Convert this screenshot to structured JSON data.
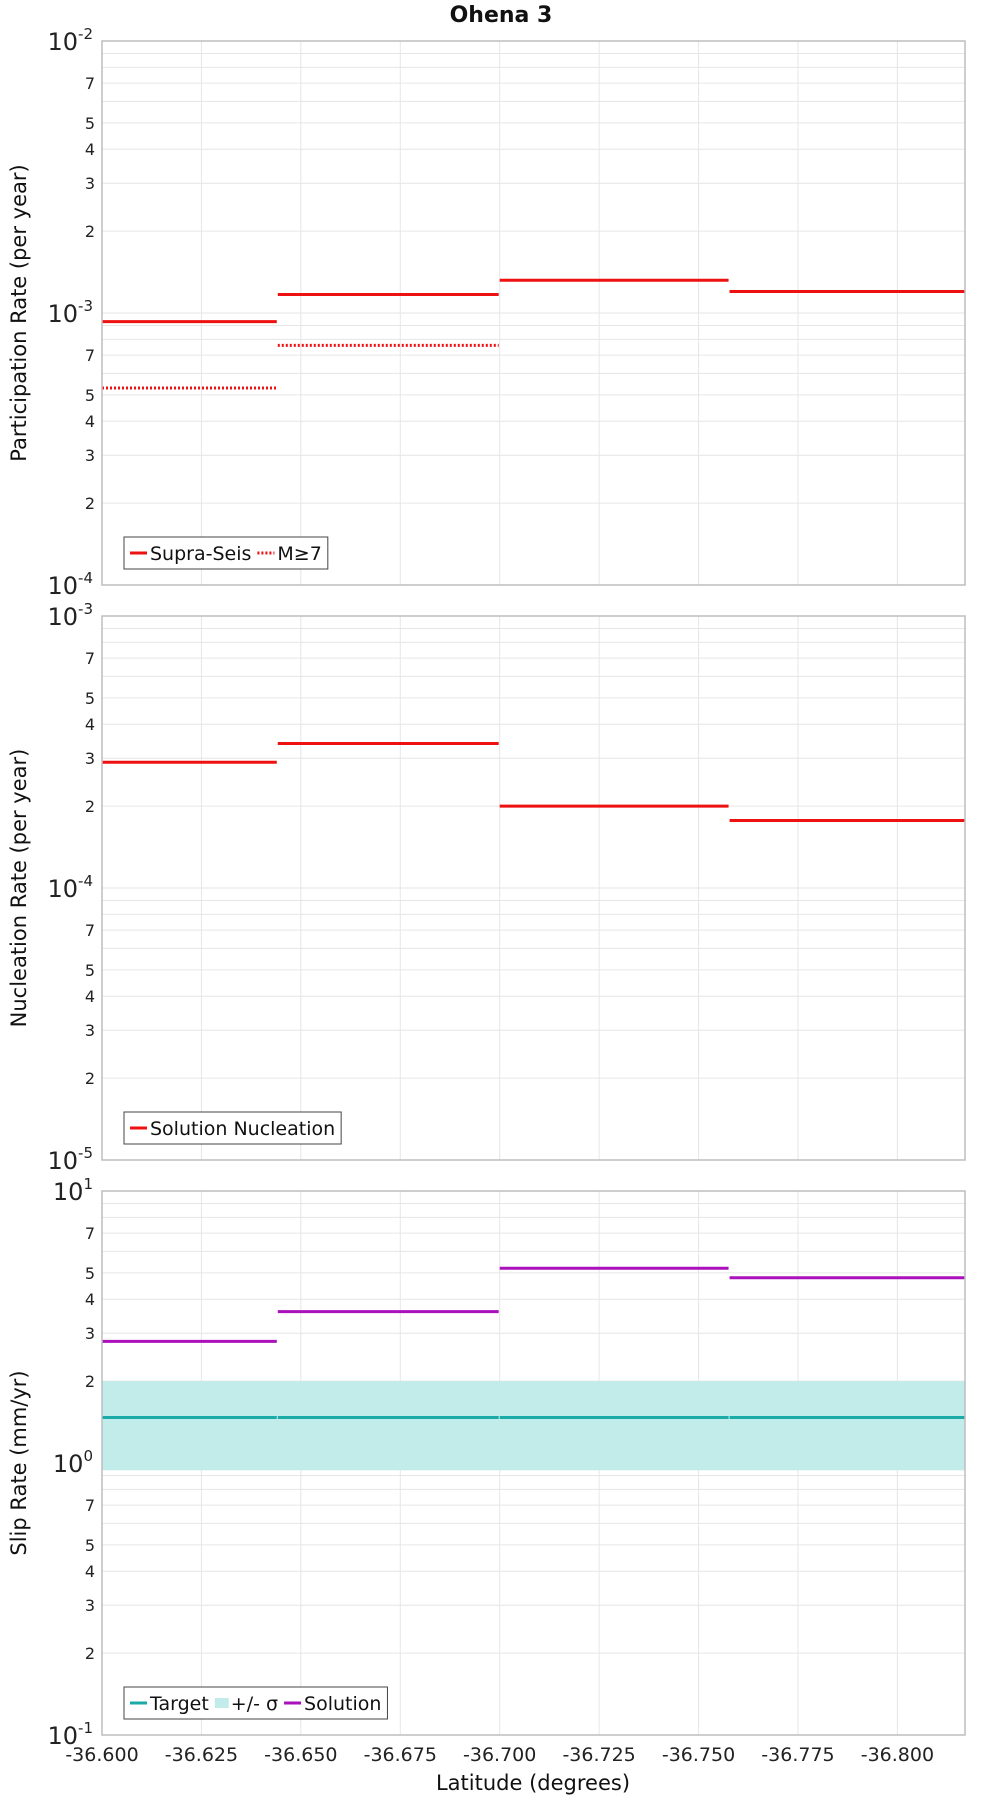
{
  "chart_data": {
    "type": "line",
    "title": "Ohena 3",
    "xlabel": "Latitude (degrees)",
    "xlim": [
      -36.6,
      -36.817
    ],
    "x_tick_values": [
      -36.6,
      -36.625,
      -36.65,
      -36.675,
      -36.7,
      -36.725,
      -36.75,
      -36.775,
      -36.8
    ],
    "x_tick_labels": [
      "-36.600",
      "-36.625",
      "-36.650",
      "-36.675",
      "-36.700",
      "-36.725",
      "-36.750",
      "-36.775",
      "-36.800"
    ],
    "segment_edges": [
      -36.6,
      -36.6442,
      -36.7,
      -36.7578,
      -36.817
    ],
    "panels": [
      {
        "ylabel": "Participation Rate (per year)",
        "ylim": [
          0.0001,
          0.01
        ],
        "decade_labels": [
          {
            "value": 0.01,
            "base": "10",
            "exp": "-2"
          },
          {
            "value": 0.001,
            "base": "10",
            "exp": "-3"
          },
          {
            "value": 0.0001,
            "base": "10",
            "exp": "-4"
          }
        ],
        "minor_labels": [
          {
            "value": 0.007,
            "label": "7"
          },
          {
            "value": 0.005,
            "label": "5"
          },
          {
            "value": 0.004,
            "label": "4"
          },
          {
            "value": 0.003,
            "label": "3"
          },
          {
            "value": 0.002,
            "label": "2"
          },
          {
            "value": 0.0007,
            "label": "7"
          },
          {
            "value": 0.0005,
            "label": "5"
          },
          {
            "value": 0.0004,
            "label": "4"
          },
          {
            "value": 0.0003,
            "label": "3"
          },
          {
            "value": 0.0002,
            "label": "2"
          }
        ],
        "series": [
          {
            "name": "Supra-Seis",
            "color": "#ee1111",
            "style": "solid",
            "values": [
              0.00093,
              0.00117,
              0.00132,
              0.0012
            ]
          },
          {
            "name": "M≥7",
            "color": "#ee1111",
            "style": "dotted",
            "values": [
              0.00053,
              0.00076,
              null,
              0.0012
            ]
          }
        ],
        "legend": [
          {
            "label": "Supra-Seis",
            "kind": "line",
            "color": "#ee1111",
            "style": "solid"
          },
          {
            "label": "M≥7",
            "kind": "line",
            "color": "#ee1111",
            "style": "dotted"
          }
        ]
      },
      {
        "ylabel": "Nucleation Rate (per year)",
        "ylim": [
          1e-05,
          0.001
        ],
        "decade_labels": [
          {
            "value": 0.001,
            "base": "10",
            "exp": "-3"
          },
          {
            "value": 0.0001,
            "base": "10",
            "exp": "-4"
          },
          {
            "value": 1e-05,
            "base": "10",
            "exp": "-5"
          }
        ],
        "minor_labels": [
          {
            "value": 0.0007,
            "label": "7"
          },
          {
            "value": 0.0005,
            "label": "5"
          },
          {
            "value": 0.0004,
            "label": "4"
          },
          {
            "value": 0.0003,
            "label": "3"
          },
          {
            "value": 0.0002,
            "label": "2"
          },
          {
            "value": 7e-05,
            "label": "7"
          },
          {
            "value": 5e-05,
            "label": "5"
          },
          {
            "value": 4e-05,
            "label": "4"
          },
          {
            "value": 3e-05,
            "label": "3"
          },
          {
            "value": 2e-05,
            "label": "2"
          }
        ],
        "series": [
          {
            "name": "Solution Nucleation",
            "color": "#ee1111",
            "style": "solid",
            "values": [
              0.00029,
              0.00034,
              0.0002,
              0.000177
            ]
          }
        ],
        "legend": [
          {
            "label": "Solution Nucleation",
            "kind": "line",
            "color": "#ee1111",
            "style": "solid"
          }
        ]
      },
      {
        "ylabel": "Slip Rate (mm/yr)",
        "ylim": [
          0.1,
          10
        ],
        "decade_labels": [
          {
            "value": 10,
            "base": "10",
            "exp": "1"
          },
          {
            "value": 1,
            "base": "10",
            "exp": "0"
          },
          {
            "value": 0.1,
            "base": "10",
            "exp": "-1"
          }
        ],
        "minor_labels": [
          {
            "value": 7,
            "label": "7"
          },
          {
            "value": 5,
            "label": "5"
          },
          {
            "value": 4,
            "label": "4"
          },
          {
            "value": 3,
            "label": "3"
          },
          {
            "value": 2,
            "label": "2"
          },
          {
            "value": 0.7,
            "label": "7"
          },
          {
            "value": 0.5,
            "label": "5"
          },
          {
            "value": 0.4,
            "label": "4"
          },
          {
            "value": 0.3,
            "label": "3"
          },
          {
            "value": 0.2,
            "label": "2"
          }
        ],
        "band": {
          "name": "+/- σ",
          "color": "#c2ecea",
          "low": 0.94,
          "high": 2.0
        },
        "series": [
          {
            "name": "Target",
            "color": "#1aaaa8",
            "style": "solid",
            "values": [
              1.47,
              1.47,
              1.47,
              1.47
            ]
          },
          {
            "name": "Solution",
            "color": "#aa11bb",
            "style": "solid",
            "values": [
              2.8,
              3.6,
              5.2,
              4.8
            ]
          }
        ],
        "legend": [
          {
            "label": "Target",
            "kind": "line",
            "color": "#1aaaa8",
            "style": "solid"
          },
          {
            "label": "+/- σ",
            "kind": "box",
            "color": "#c2ecea",
            "style": "solid"
          },
          {
            "label": "Solution",
            "kind": "line",
            "color": "#aa11bb",
            "style": "solid"
          }
        ]
      }
    ]
  }
}
